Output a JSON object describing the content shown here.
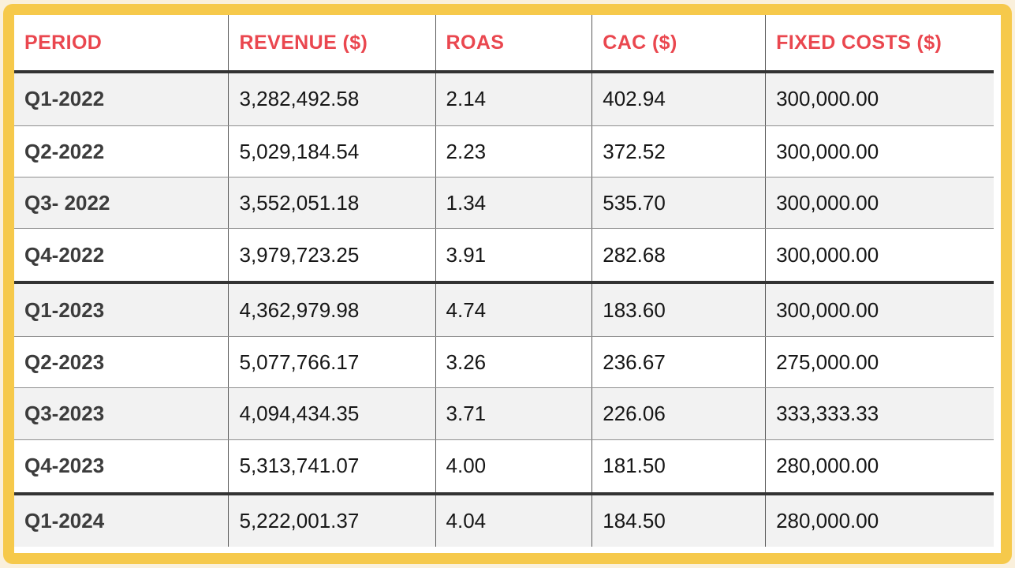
{
  "colors": {
    "page_background": "#faf0dc",
    "frame_border": "#f6c94b",
    "panel_background": "#ffffff",
    "row_stripe": "#f2f2f2",
    "header_text": "#ea474f",
    "group_divider": "#333333",
    "row_divider": "#8f8f8f",
    "column_divider": "#5a5a5a",
    "period_text": "#3c3c3c",
    "value_text": "#161616"
  },
  "table": {
    "columns": [
      {
        "key": "period",
        "label": "PERIOD"
      },
      {
        "key": "revenue",
        "label": "REVENUE ($)"
      },
      {
        "key": "roas",
        "label": "ROAS"
      },
      {
        "key": "cac",
        "label": "CAC ($)"
      },
      {
        "key": "fixed_costs",
        "label": "FIXED COSTS ($)"
      }
    ],
    "rows": [
      {
        "period": "Q1-2022",
        "revenue": "3,282,492.58",
        "roas": "2.14",
        "cac": "402.94",
        "fixed_costs": "300,000.00",
        "year_group_start": false
      },
      {
        "period": "Q2-2022",
        "revenue": "5,029,184.54",
        "roas": "2.23",
        "cac": "372.52",
        "fixed_costs": "300,000.00",
        "year_group_start": false
      },
      {
        "period": "Q3- 2022",
        "revenue": "3,552,051.18",
        "roas": "1.34",
        "cac": "535.70",
        "fixed_costs": "300,000.00",
        "year_group_start": false
      },
      {
        "period": "Q4-2022",
        "revenue": "3,979,723.25",
        "roas": "3.91",
        "cac": "282.68",
        "fixed_costs": "300,000.00",
        "year_group_start": false
      },
      {
        "period": "Q1-2023",
        "revenue": "4,362,979.98",
        "roas": "4.74",
        "cac": "183.60",
        "fixed_costs": "300,000.00",
        "year_group_start": true
      },
      {
        "period": "Q2-2023",
        "revenue": "5,077,766.17",
        "roas": "3.26",
        "cac": "236.67",
        "fixed_costs": "275,000.00",
        "year_group_start": false
      },
      {
        "period": "Q3-2023",
        "revenue": "4,094,434.35",
        "roas": "3.71",
        "cac": "226.06",
        "fixed_costs": "333,333.33",
        "year_group_start": false
      },
      {
        "period": "Q4-2023",
        "revenue": "5,313,741.07",
        "roas": "4.00",
        "cac": "181.50",
        "fixed_costs": "280,000.00",
        "year_group_start": false
      },
      {
        "period": "Q1-2024",
        "revenue": "5,222,001.37",
        "roas": "4.04",
        "cac": "184.50",
        "fixed_costs": "280,000.00",
        "year_group_start": true
      }
    ]
  },
  "chart_data": {
    "type": "table",
    "columns": [
      "PERIOD",
      "REVENUE ($)",
      "ROAS",
      "CAC ($)",
      "FIXED COSTS ($)"
    ],
    "rows": [
      [
        "Q1-2022",
        3282492.58,
        2.14,
        402.94,
        300000.0
      ],
      [
        "Q2-2022",
        5029184.54,
        2.23,
        372.52,
        300000.0
      ],
      [
        "Q3- 2022",
        3552051.18,
        1.34,
        535.7,
        300000.0
      ],
      [
        "Q4-2022",
        3979723.25,
        3.91,
        282.68,
        300000.0
      ],
      [
        "Q1-2023",
        4362979.98,
        4.74,
        183.6,
        300000.0
      ],
      [
        "Q2-2023",
        5077766.17,
        3.26,
        236.67,
        275000.0
      ],
      [
        "Q3-2023",
        4094434.35,
        3.71,
        226.06,
        333333.33
      ],
      [
        "Q4-2023",
        5313741.07,
        4.0,
        181.5,
        280000.0
      ],
      [
        "Q1-2024",
        5222001.37,
        4.04,
        184.5,
        280000.0
      ]
    ],
    "layout": {
      "zebra_striping": true,
      "year_group_dividers_after": [
        "Q4-2022",
        "Q4-2023"
      ],
      "header_position": "top"
    }
  }
}
